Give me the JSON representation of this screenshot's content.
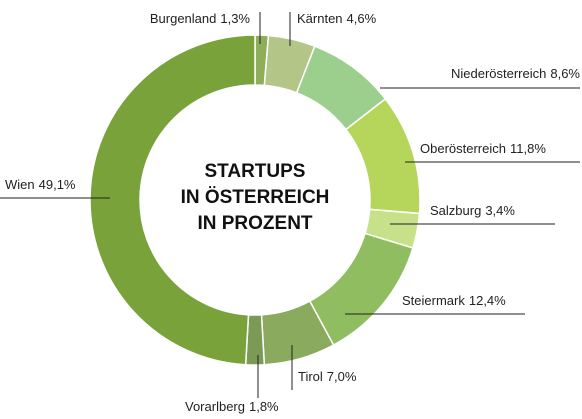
{
  "chart_data": {
    "type": "pie",
    "title": [
      "STARTUPS",
      "IN ÖSTERREICH",
      "IN PROZENT"
    ],
    "categories": [
      "Burgenland",
      "Kärnten",
      "Niederösterreich",
      "Oberösterreich",
      "Salzburg",
      "Steiermark",
      "Tirol",
      "Vorarlberg",
      "Wien"
    ],
    "values": [
      1.3,
      4.6,
      8.6,
      11.8,
      3.4,
      12.4,
      7.0,
      1.8,
      49.1
    ],
    "value_labels": [
      "1,3%",
      "4,6%",
      "8,6%",
      "11,8%",
      "3,4%",
      "12,4%",
      "7,0%",
      "1,8%",
      "49,1%"
    ],
    "colors": [
      "#8fae5a",
      "#b3c587",
      "#9ccf8e",
      "#b5d65a",
      "#c7e08a",
      "#8fbd5f",
      "#8aaa5e",
      "#7a9a55",
      "#7aa23a"
    ]
  }
}
